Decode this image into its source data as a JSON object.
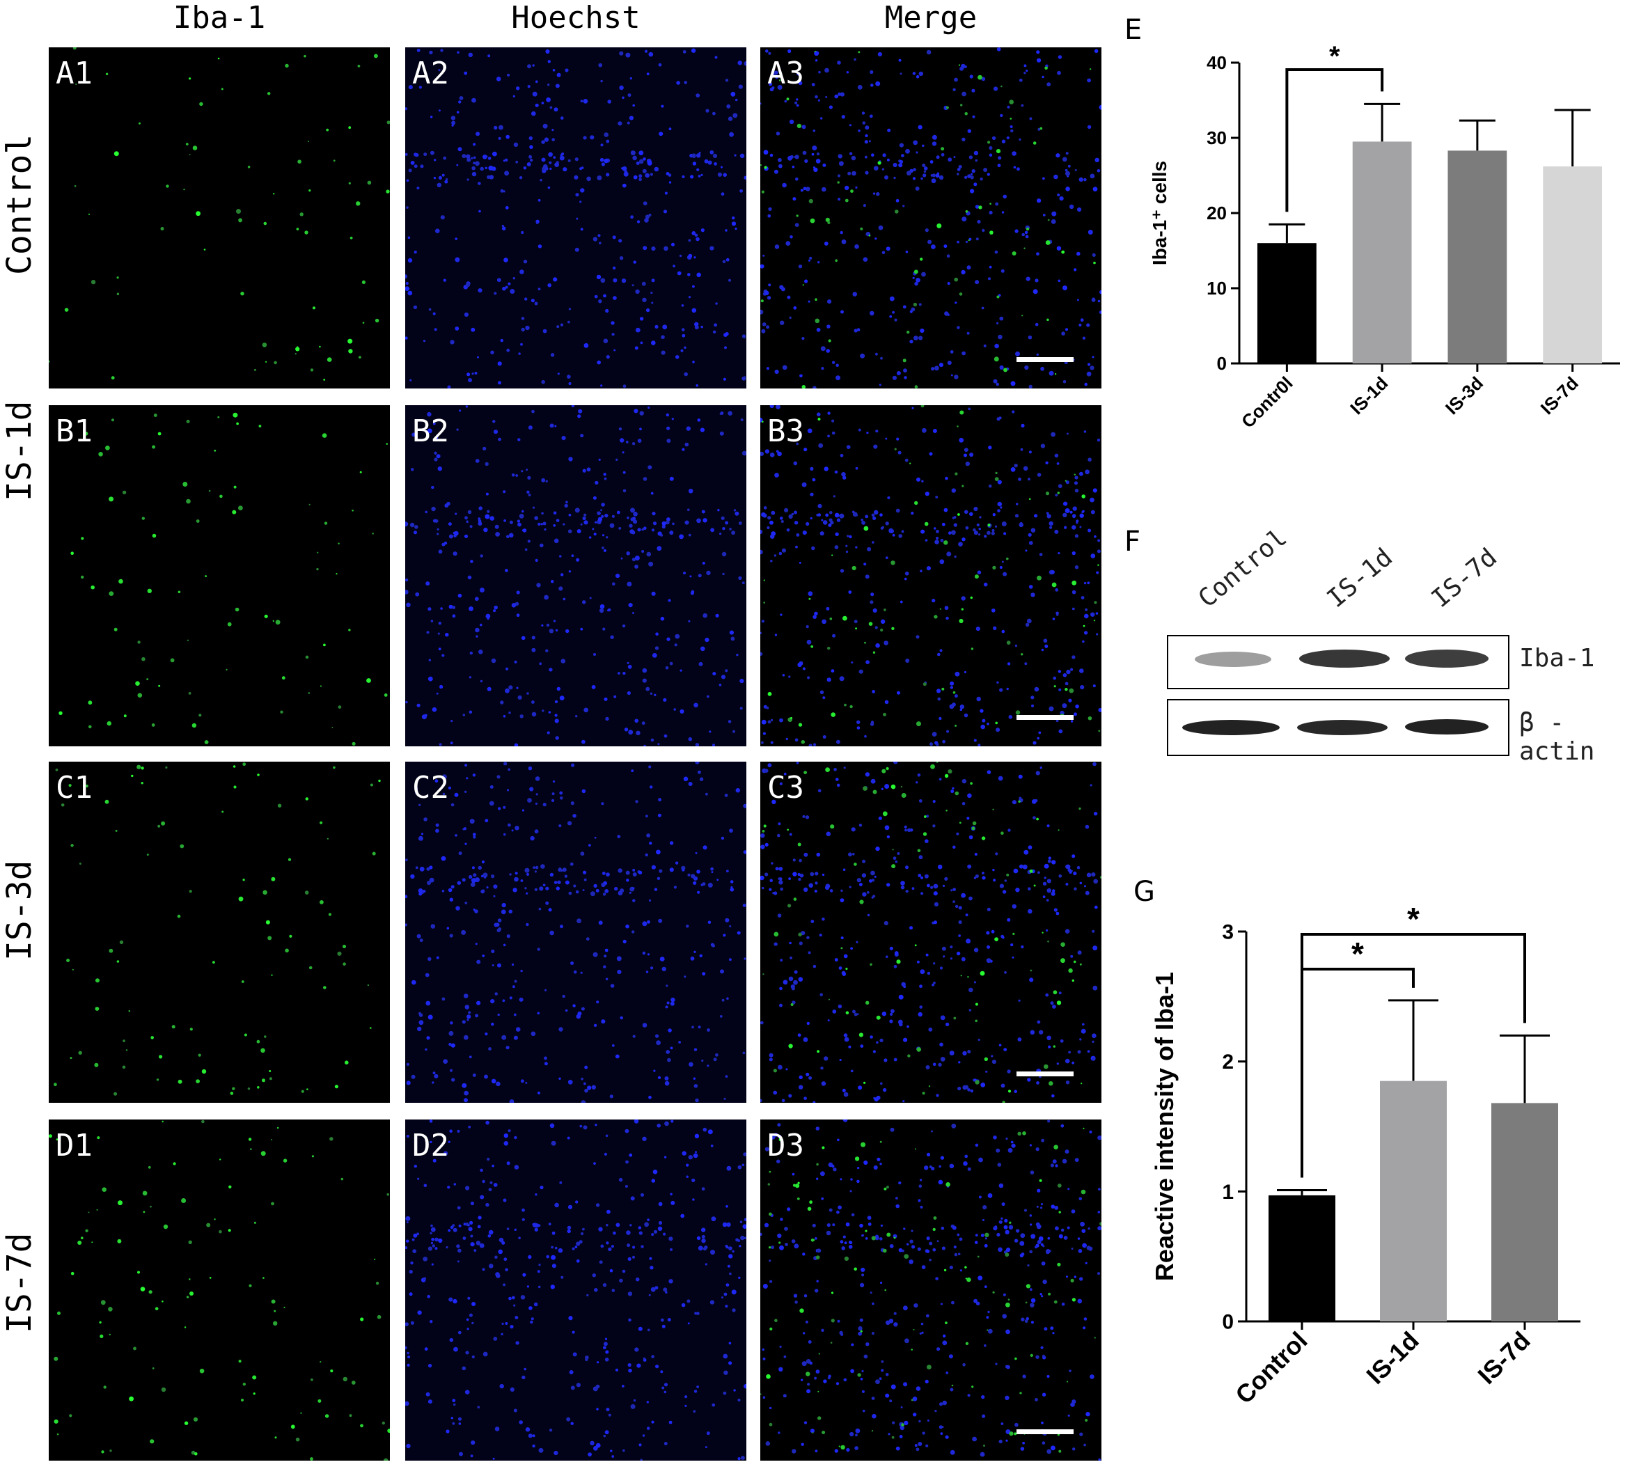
{
  "column_headers": [
    "Iba-1",
    "Hoechst",
    "Merge"
  ],
  "row_headers": [
    "Control",
    "IS-1d",
    "IS-3d",
    "IS-7d"
  ],
  "panel_labels": [
    [
      "A1",
      "A2",
      "A3"
    ],
    [
      "B1",
      "B2",
      "B3"
    ],
    [
      "C1",
      "C2",
      "C3"
    ],
    [
      "D1",
      "D2",
      "D3"
    ]
  ],
  "panel_E": {
    "letter": "E",
    "chart_data": {
      "type": "bar",
      "categories": [
        "Contr0l",
        "IS-1d",
        "IS-3d",
        "IS-7d"
      ],
      "values": [
        16,
        29.5,
        28.3,
        26.2
      ],
      "errors": [
        2.5,
        5,
        4,
        7.5
      ],
      "colors": [
        "#000000",
        "#a3a3a6",
        "#7c7c7c",
        "#d6d6d6"
      ],
      "ylabel": "Iba-1⁺ cells",
      "ylim": [
        0,
        40
      ],
      "yticks": [
        0,
        10,
        20,
        30,
        40
      ],
      "significance": [
        {
          "from": 0,
          "to": 1,
          "label": "*"
        }
      ]
    }
  },
  "panel_F": {
    "letter": "F",
    "lanes": [
      "Control",
      "IS-1d",
      "IS-7d"
    ],
    "bands": [
      "Iba-1",
      "β -actin"
    ]
  },
  "panel_G": {
    "letter": "G",
    "chart_data": {
      "type": "bar",
      "categories": [
        "Control",
        "IS-1d",
        "IS-7d"
      ],
      "values": [
        0.97,
        1.85,
        1.68
      ],
      "errors": [
        0.04,
        0.62,
        0.52
      ],
      "colors": [
        "#000000",
        "#a3a3a6",
        "#7c7c7c"
      ],
      "ylabel": "Reactive intensity of Iba-1",
      "ylim": [
        0,
        3
      ],
      "yticks": [
        0,
        1,
        2,
        3
      ],
      "significance": [
        {
          "from": 0,
          "to": 1,
          "label": "*"
        },
        {
          "from": 0,
          "to": 2,
          "label": "*"
        }
      ]
    }
  }
}
